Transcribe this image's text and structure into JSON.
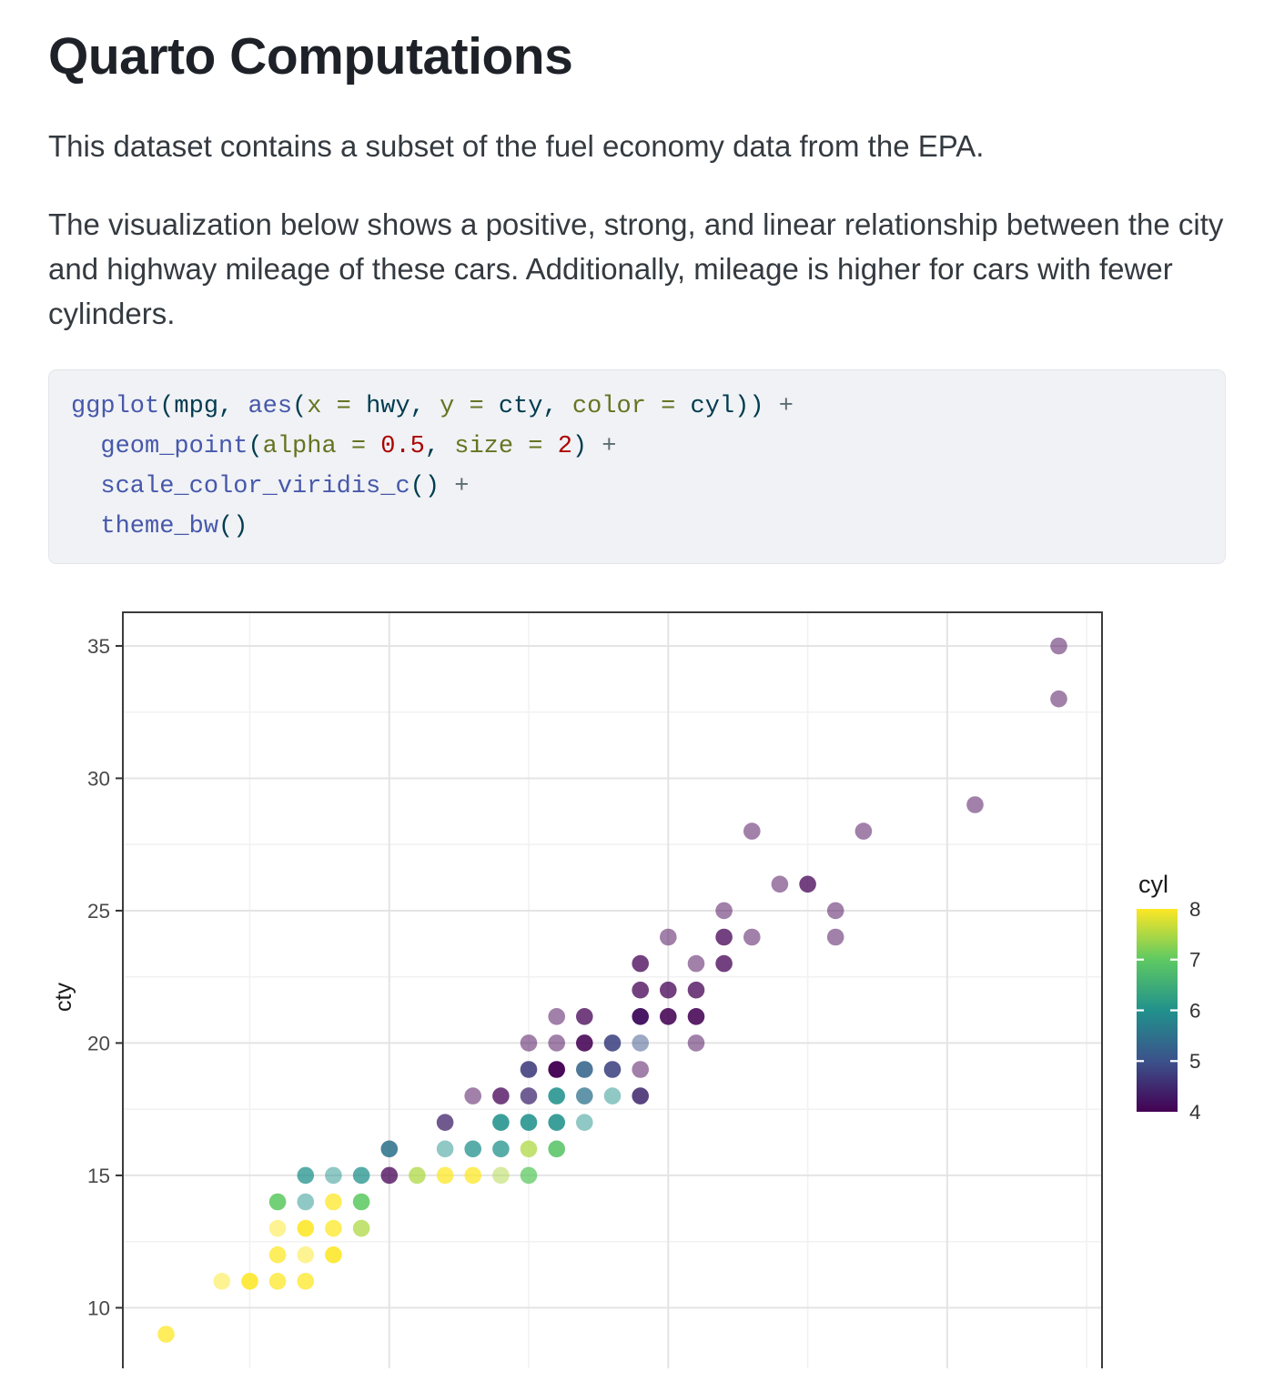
{
  "doc": {
    "title": "Quarto Computations",
    "paragraph1": "This dataset contains a subset of the fuel economy data from the EPA.",
    "paragraph2": "The visualization below shows a positive, strong, and linear relationship between the city and highway mileage of these cars. Additionally, mileage is higher for cars with fewer cylinders."
  },
  "code": {
    "token_colors": {
      "fn": "#4758AB",
      "txt": "#003B4F",
      "arg": "#657422",
      "num": "#AD0000",
      "plus": "#5E6B73"
    },
    "lines": [
      [
        [
          "fn",
          "ggplot"
        ],
        [
          "txt",
          "("
        ],
        [
          "txt",
          "mpg"
        ],
        [
          "txt",
          ", "
        ],
        [
          "fn",
          "aes"
        ],
        [
          "txt",
          "("
        ],
        [
          "arg",
          "x"
        ],
        [
          "arg",
          " = "
        ],
        [
          "txt",
          "hwy"
        ],
        [
          "txt",
          ", "
        ],
        [
          "arg",
          "y"
        ],
        [
          "arg",
          " = "
        ],
        [
          "txt",
          "cty"
        ],
        [
          "txt",
          ", "
        ],
        [
          "arg",
          "color"
        ],
        [
          "arg",
          " = "
        ],
        [
          "txt",
          "cyl"
        ],
        [
          "txt",
          "))"
        ],
        [
          "plus",
          " +"
        ]
      ],
      [
        [
          "txt",
          "  "
        ],
        [
          "fn",
          "geom_point"
        ],
        [
          "txt",
          "("
        ],
        [
          "arg",
          "alpha"
        ],
        [
          "arg",
          " = "
        ],
        [
          "num",
          "0.5"
        ],
        [
          "txt",
          ", "
        ],
        [
          "arg",
          "size"
        ],
        [
          "arg",
          " = "
        ],
        [
          "num",
          "2"
        ],
        [
          "txt",
          ")"
        ],
        [
          "plus",
          " +"
        ]
      ],
      [
        [
          "txt",
          "  "
        ],
        [
          "fn",
          "scale_color_viridis_c"
        ],
        [
          "txt",
          "()"
        ],
        [
          "plus",
          " +"
        ]
      ],
      [
        [
          "txt",
          "  "
        ],
        [
          "fn",
          "theme_bw"
        ],
        [
          "txt",
          "()"
        ]
      ]
    ]
  },
  "chart_data": {
    "type": "scatter",
    "x": "hwy",
    "y": "cty",
    "color": "cyl",
    "ylabel": "cty",
    "point_alpha": 0.5,
    "x_range": [
      10.45,
      45.55
    ],
    "y_range": [
      7.54,
      36.27
    ],
    "x_major_gridlines": [
      20,
      30,
      40
    ],
    "x_minor_gridlines": [
      15,
      25,
      35,
      45
    ],
    "y_ticks": [
      35,
      30,
      25,
      20,
      15,
      10
    ],
    "y_minor_gridlines": [
      32.5,
      27.5,
      22.5,
      17.5,
      12.5
    ],
    "legend": {
      "title": "cyl",
      "ticks": [
        8,
        7,
        6,
        5,
        4
      ],
      "inner_ticks": [
        7,
        6,
        5
      ],
      "range": [
        4,
        8
      ]
    },
    "viridis_stops": {
      "4": "#440154",
      "5": "#3B528B",
      "6": "#21918C",
      "7": "#5EC962",
      "8": "#FDE725"
    },
    "grid_major_color": "#e4e4e4",
    "grid_minor_color": "#f2f2f2",
    "panel_border_color": "#3c3c3c",
    "tick_label_color": "#4a4a4a",
    "axis_title_color": "#1a1a1a",
    "points": [
      [
        44,
        35,
        4,
        1
      ],
      [
        44,
        33,
        4,
        1
      ],
      [
        41,
        29,
        4,
        1
      ],
      [
        33,
        28,
        4,
        1
      ],
      [
        37,
        28,
        4,
        1
      ],
      [
        34,
        26,
        4,
        1
      ],
      [
        35,
        26,
        4,
        2
      ],
      [
        32,
        25,
        4,
        1
      ],
      [
        36,
        25,
        4,
        1
      ],
      [
        30,
        24,
        4,
        1
      ],
      [
        32,
        24,
        4,
        2
      ],
      [
        33,
        24,
        4,
        1
      ],
      [
        36,
        24,
        4,
        1
      ],
      [
        29,
        23,
        4,
        2
      ],
      [
        31,
        23,
        4,
        1
      ],
      [
        32,
        23,
        4,
        2
      ],
      [
        29,
        22,
        4,
        2
      ],
      [
        30,
        22,
        4,
        2
      ],
      [
        31,
        22,
        4,
        2
      ],
      [
        26,
        21,
        4,
        1
      ],
      [
        27,
        21,
        4,
        2
      ],
      [
        29,
        21,
        4.2,
        5
      ],
      [
        30,
        21,
        4,
        3
      ],
      [
        31,
        21,
        4,
        3
      ],
      [
        25,
        20,
        4,
        1
      ],
      [
        26,
        20,
        4,
        1
      ],
      [
        27,
        20,
        4,
        3
      ],
      [
        28,
        20,
        4.8,
        3
      ],
      [
        29,
        20,
        5,
        1
      ],
      [
        31,
        20,
        4,
        1
      ],
      [
        25,
        19,
        4.7,
        3
      ],
      [
        26,
        19,
        4,
        5
      ],
      [
        27,
        19,
        5.3,
        3
      ],
      [
        28,
        19,
        4.8,
        3
      ],
      [
        29,
        19,
        4,
        1
      ],
      [
        23,
        18,
        4,
        1
      ],
      [
        24,
        18,
        4,
        2
      ],
      [
        25,
        18,
        4.5,
        2
      ],
      [
        26,
        18,
        6,
        3
      ],
      [
        27,
        18,
        5.5,
        2
      ],
      [
        28,
        18,
        6,
        1
      ],
      [
        29,
        18,
        4.5,
        3
      ],
      [
        22,
        17,
        4.4,
        2
      ],
      [
        24,
        17,
        6,
        3
      ],
      [
        25,
        17,
        6,
        3
      ],
      [
        26,
        17,
        6,
        3
      ],
      [
        27,
        17,
        6,
        1
      ],
      [
        20,
        16,
        5.5,
        3
      ],
      [
        22,
        16,
        6,
        1
      ],
      [
        23,
        16,
        6,
        2
      ],
      [
        24,
        16,
        6,
        2
      ],
      [
        25,
        16,
        7.5,
        2
      ],
      [
        26,
        16,
        6.9,
        3
      ],
      [
        17,
        15,
        6,
        2
      ],
      [
        18,
        15,
        6,
        1
      ],
      [
        19,
        15,
        6,
        2
      ],
      [
        20,
        15,
        4,
        2
      ],
      [
        21,
        15,
        7.5,
        2
      ],
      [
        22,
        15,
        8,
        2
      ],
      [
        23,
        15,
        8,
        2
      ],
      [
        24,
        15,
        7.5,
        1
      ],
      [
        25,
        15,
        7,
        2
      ],
      [
        16,
        14,
        7,
        3
      ],
      [
        17,
        14,
        6,
        1
      ],
      [
        18,
        14,
        8,
        2
      ],
      [
        19,
        14,
        7,
        3
      ],
      [
        16,
        13,
        8,
        1
      ],
      [
        17,
        13,
        8,
        3
      ],
      [
        18,
        13,
        8,
        2
      ],
      [
        19,
        13,
        7.5,
        2
      ],
      [
        16,
        12,
        8,
        2
      ],
      [
        17,
        12,
        8,
        1
      ],
      [
        18,
        12,
        8,
        3
      ],
      [
        14,
        11,
        8,
        1
      ],
      [
        15,
        11,
        8,
        3
      ],
      [
        16,
        11,
        8,
        2
      ],
      [
        17,
        11,
        8,
        2
      ],
      [
        12,
        9,
        8,
        2
      ]
    ]
  }
}
